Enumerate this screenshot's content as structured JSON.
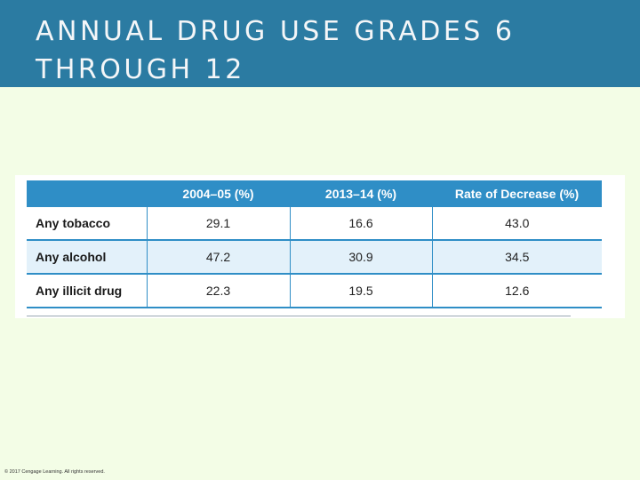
{
  "slide": {
    "title": "Annual drug use grades 6 through 12",
    "colors": {
      "header_bg": "#2b7ba2",
      "slide_bg": "#f3fde6",
      "table_header_bg": "#2f8ec6",
      "table_alt_row": "#e3f1fa"
    }
  },
  "table": {
    "columns": [
      "",
      "2004–05 (%)",
      "2013–14 (%)",
      "Rate of Decrease (%)"
    ],
    "rows": [
      {
        "label": "Any tobacco",
        "y2004_05": "29.1",
        "y2013_14": "16.6",
        "rate_of_decrease": "43.0"
      },
      {
        "label": "Any alcohol",
        "y2004_05": "47.2",
        "y2013_14": "30.9",
        "rate_of_decrease": "34.5"
      },
      {
        "label": "Any illicit drug",
        "y2004_05": "22.3",
        "y2013_14": "19.5",
        "rate_of_decrease": "12.6"
      }
    ]
  },
  "footer": {
    "copyright": "© 2017 Cengage Learning. All rights reserved."
  }
}
